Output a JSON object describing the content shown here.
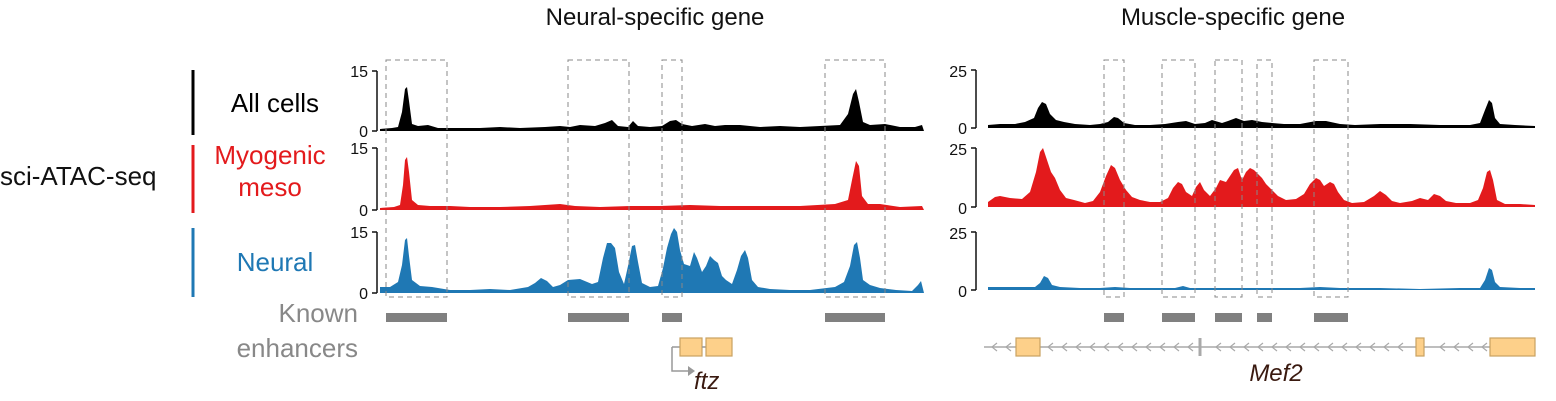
{
  "panels": [
    {
      "title": "Neural-specific gene",
      "gene_name": "ftz"
    },
    {
      "title": "Muscle-specific gene",
      "gene_name": "Mef2"
    }
  ],
  "assay_label": "sci-ATAC-seq",
  "tracks": [
    {
      "label_lines": [
        "All cells"
      ],
      "color": "#000000"
    },
    {
      "label_lines": [
        "Myogenic",
        "meso"
      ],
      "color": "#e31a1c"
    },
    {
      "label_lines": [
        "Neural"
      ],
      "color": "#1f78b4"
    }
  ],
  "axes": {
    "left": {
      "ymax": "15",
      "ymin": "0"
    },
    "right": {
      "ymax": "25",
      "ymin": "0"
    }
  },
  "enhancer_label_lines": [
    "Known",
    "enhancers"
  ],
  "colors": {
    "enhancer": "#808080",
    "exon": "#fdd08a",
    "exon_stroke": "#c9a261",
    "intron": "#a9a9a9",
    "dashed": "#888888"
  }
}
